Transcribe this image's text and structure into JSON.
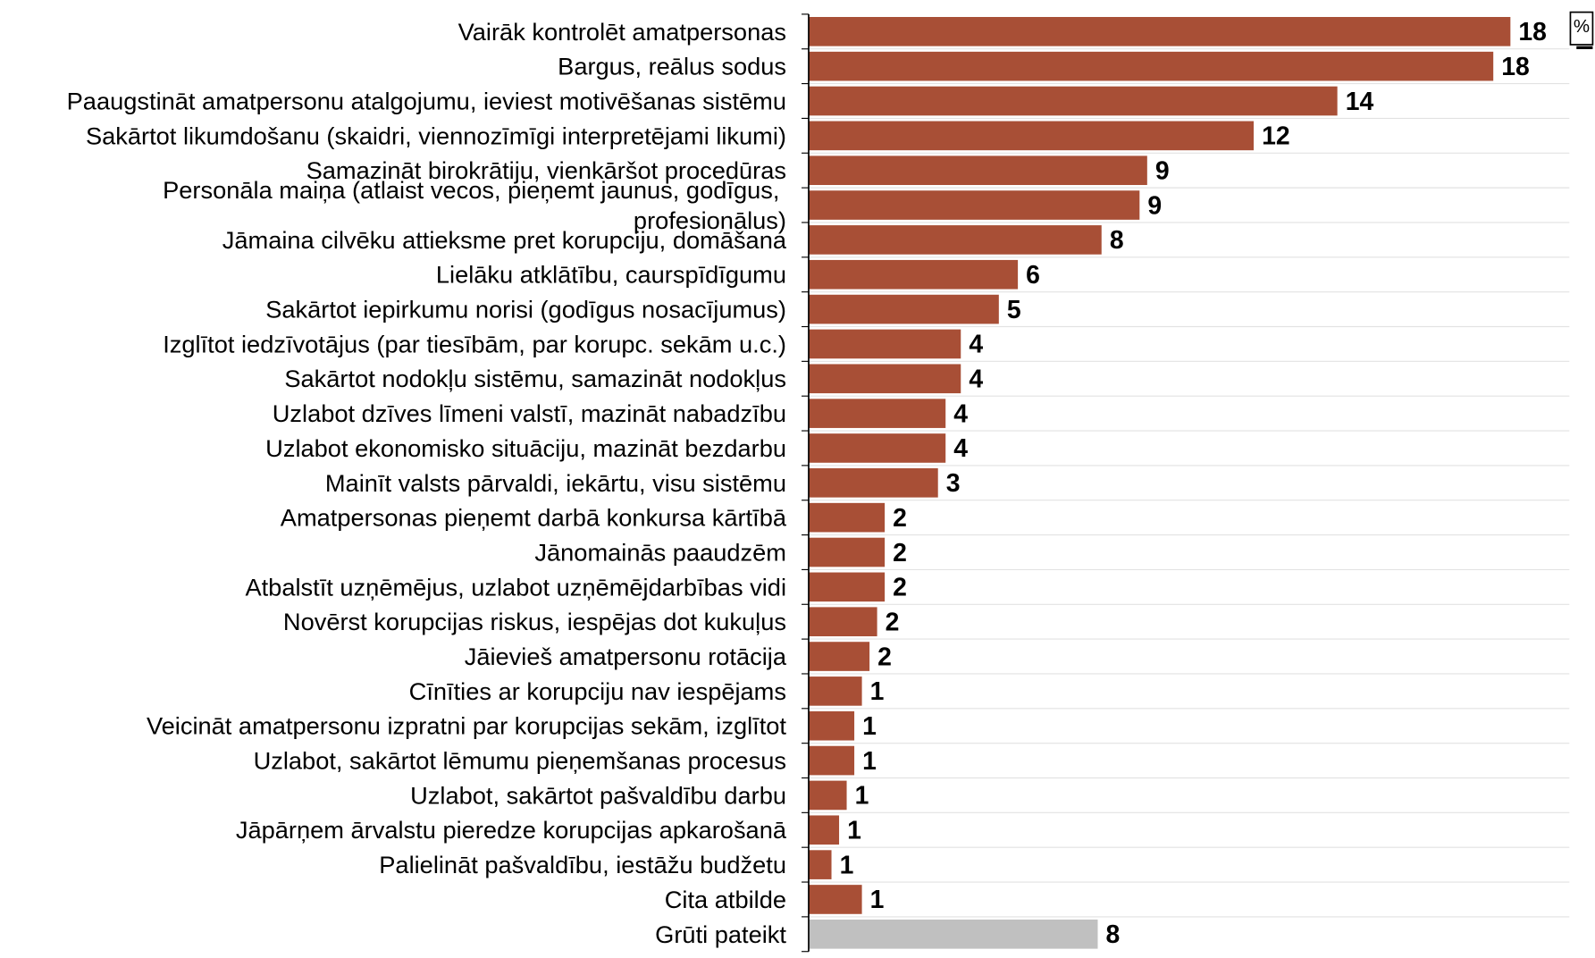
{
  "chart_data": {
    "type": "bar",
    "orientation": "horizontal",
    "unit_label": "%",
    "categories": [
      "Vairāk kontrolēt amatpersonas",
      "Bargus, reālus sodus",
      "Paaugstināt amatpersonu atalgojumu, ieviest motivēšanas sistēmu",
      "Sakārtot likumdošanu (skaidri, viennozīmīgi interpretējami likumi)",
      "Samazināt birokrātiju, vienkāršot procedūras",
      "Personāla maiņa (atlaist vecos, pieņemt jaunus, godīgus, profesionālus)",
      "Jāmaina cilvēku attieksme pret korupciju, domāšana",
      "Lielāku atklātību, caurspīdīgumu",
      "Sakārtot iepirkumu norisi (godīgus nosacījumus)",
      "Izglītot iedzīvotājus (par tiesībām, par korupc. sekām u.c.)",
      "Sakārtot nodokļu sistēmu, samazināt nodokļus",
      "Uzlabot dzīves līmeni valstī, mazināt nabadzību",
      "Uzlabot ekonomisko situāciju, mazināt bezdarbu",
      "Mainīt valsts pārvaldi, iekārtu, visu sistēmu",
      "Amatpersonas pieņemt darbā konkursa kārtībā",
      "Jānomainās paaudzēm",
      "Atbalstīt uzņēmējus, uzlabot uzņēmējdarbības vidi",
      "Novērst korupcijas riskus, iespējas dot kukuļus",
      "Jāievieš amatpersonu rotācija",
      "Cīnīties ar korupciju nav iespējams",
      "Veicināt amatpersonu izpratni par korupcijas sekām, izglītot",
      "Uzlabot, sakārtot lēmumu pieņemšanas procesus",
      "Uzlabot, sakārtot pašvaldību darbu",
      "Jāpārņem ārvalstu pieredze korupcijas apkarošanā",
      "Palielināt pašvaldību, iestāžu budžetu",
      "Cita atbilde",
      "Grūti pateikt"
    ],
    "values": [
      18.45,
      18.0,
      13.9,
      11.7,
      8.9,
      8.7,
      7.7,
      5.5,
      5.0,
      4.0,
      4.0,
      3.6,
      3.6,
      3.4,
      2.0,
      2.0,
      2.0,
      1.8,
      1.6,
      1.4,
      1.2,
      1.2,
      1.0,
      0.8,
      0.6,
      1.4,
      7.6
    ],
    "value_labels": [
      "18",
      "18",
      "14",
      "12",
      "9",
      "9",
      "8",
      "6",
      "5",
      "4",
      "4",
      "4",
      "4",
      "3",
      "2",
      "2",
      "2",
      "2",
      "2",
      "1",
      "1",
      "1",
      "1",
      "1",
      "1",
      "1",
      "8"
    ],
    "colors": [
      "#a84f36",
      "#a84f36",
      "#a84f36",
      "#a84f36",
      "#a84f36",
      "#a84f36",
      "#a84f36",
      "#a84f36",
      "#a84f36",
      "#a84f36",
      "#a84f36",
      "#a84f36",
      "#a84f36",
      "#a84f36",
      "#a84f36",
      "#a84f36",
      "#a84f36",
      "#a84f36",
      "#a84f36",
      "#a84f36",
      "#a84f36",
      "#a84f36",
      "#a84f36",
      "#a84f36",
      "#a84f36",
      "#a84f36",
      "#c0c0c0"
    ],
    "xlim": [
      0,
      20
    ]
  }
}
